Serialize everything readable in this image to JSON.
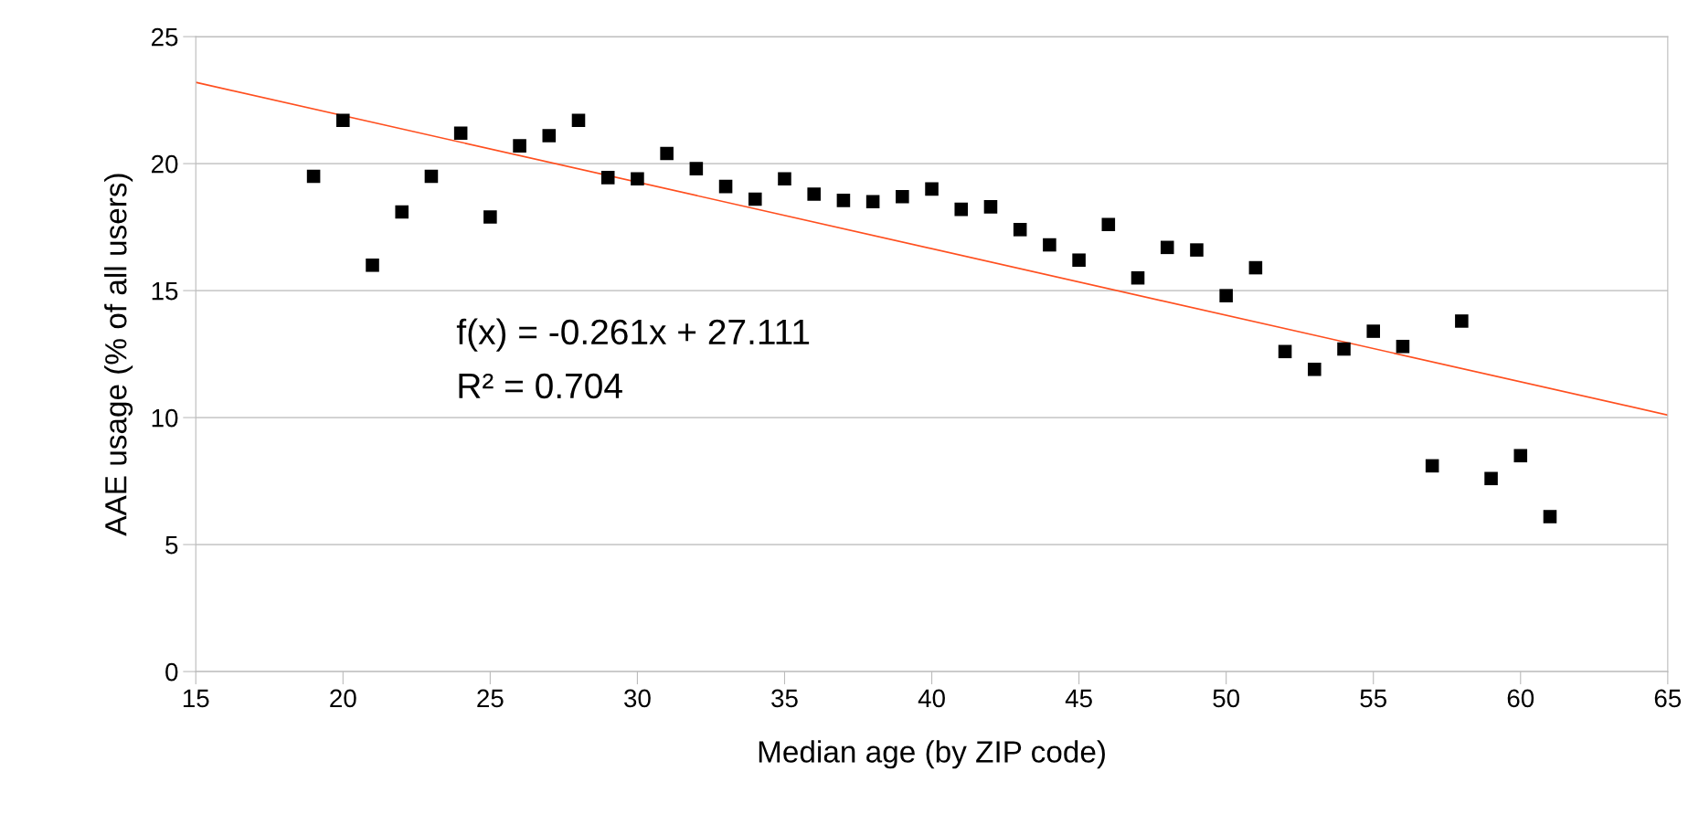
{
  "chart_data": {
    "type": "scatter",
    "xlabel": "Median age (by ZIP code)",
    "ylabel": "AAE usage (% of all users)",
    "xlim": [
      15,
      65
    ],
    "xticks": [
      15,
      20,
      25,
      30,
      35,
      40,
      45,
      50,
      55,
      60,
      65
    ],
    "ylim": [
      0,
      25
    ],
    "yticks": [
      0,
      5,
      10,
      15,
      20,
      25
    ],
    "grid": "y",
    "series": [
      {
        "marker": "square",
        "color": "#000000",
        "x": [
          19,
          20,
          21,
          22,
          23,
          24,
          25,
          26,
          27,
          28,
          29,
          30,
          31,
          32,
          33,
          34,
          35,
          36,
          37,
          38,
          39,
          40,
          41,
          42,
          43,
          44,
          45,
          46,
          47,
          48,
          49,
          50,
          51,
          52,
          53,
          54,
          55,
          56,
          57,
          58,
          59,
          60,
          61
        ],
        "values": [
          19.5,
          21.7,
          16.0,
          18.1,
          19.5,
          21.2,
          17.9,
          20.7,
          21.1,
          21.7,
          19.45,
          19.4,
          20.4,
          19.8,
          19.1,
          18.6,
          19.4,
          18.8,
          18.55,
          18.5,
          18.7,
          19.0,
          18.2,
          18.3,
          17.4,
          16.8,
          16.2,
          17.6,
          15.5,
          16.7,
          16.6,
          14.8,
          15.9,
          12.6,
          11.9,
          12.7,
          13.4,
          12.8,
          8.1,
          13.8,
          7.6,
          8.5,
          6.1
        ]
      },
      {
        "type": "line",
        "color": "#ff4f1f",
        "x": [
          15,
          65
        ],
        "values": [
          23.2,
          10.1
        ]
      }
    ],
    "annotations": [
      "f(x) = -0.261x + 27.111",
      "R² = 0.704"
    ]
  }
}
